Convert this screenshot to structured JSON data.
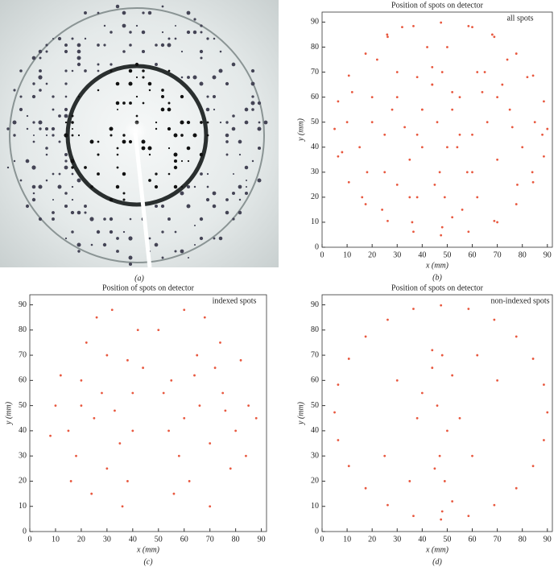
{
  "panel_a": {
    "label": "(a)"
  },
  "chart_data": [
    {
      "type": "scatter",
      "title": "Position of spots on detector",
      "xlabel": "x (mm)",
      "ylabel": "y (mm)",
      "panel_label": "(b)",
      "xlim": [
        0,
        92
      ],
      "ylim": [
        0,
        94
      ],
      "xticks": [
        0,
        10,
        20,
        30,
        40,
        50,
        60,
        70,
        80,
        90
      ],
      "yticks": [
        0,
        10,
        20,
        30,
        40,
        50,
        60,
        70,
        80,
        90
      ],
      "series": [
        {
          "name": "all spots",
          "color": "#e8583f",
          "x": [
            10,
            15,
            20,
            25,
            30,
            35,
            40,
            42,
            38,
            30,
            22,
            18,
            12,
            28,
            33,
            40,
            44,
            26,
            36,
            8,
            16,
            24,
            32,
            20,
            38,
            50,
            55,
            60,
            65,
            70,
            75,
            80,
            85,
            58,
            62,
            68,
            72,
            78,
            82,
            88,
            54,
            66,
            74,
            56,
            70,
            60,
            84,
            52,
            76,
            64,
            90,
            88.6,
            84.3,
            77.6,
            68.8,
            58.5,
            47.5,
            36.5,
            26.2,
            17.4,
            10.7,
            6.4,
            5,
            6.4,
            10.7,
            17.4,
            26.2,
            36.5,
            47.5,
            58.5,
            68.8,
            77.6,
            84.3,
            88.6,
            44,
            48,
            52,
            40,
            46,
            50,
            47,
            49,
            45,
            55,
            38,
            30,
            60,
            25,
            70,
            52,
            44,
            35,
            62,
            48
          ],
          "y": [
            50,
            40,
            60,
            45,
            70,
            35,
            55,
            80,
            20,
            25,
            75,
            30,
            62,
            55,
            48,
            40,
            65,
            85,
            10,
            38,
            20,
            15,
            88,
            50,
            68,
            80,
            60,
            45,
            70,
            35,
            55,
            40,
            50,
            30,
            20,
            85,
            65,
            25,
            68,
            45,
            40,
            50,
            75,
            15,
            10,
            88,
            30,
            55,
            48,
            62,
            47.3,
            58.3,
            68.6,
            77.4,
            84.1,
            88.4,
            89.8,
            88.4,
            84.1,
            77.4,
            68.6,
            58.3,
            47.3,
            36.3,
            26,
            17.2,
            10.5,
            6.2,
            4.8,
            6.2,
            10.5,
            17.2,
            26,
            36.3,
            65,
            70,
            62,
            55,
            50,
            40,
            30,
            20,
            25,
            45,
            45,
            60,
            30,
            30,
            60,
            12,
            72,
            20,
            70,
            8
          ]
        }
      ]
    },
    {
      "type": "scatter",
      "title": "Position of spots on detector",
      "xlabel": "x (mm)",
      "ylabel": "y (mm)",
      "panel_label": "(c)",
      "xlim": [
        0,
        92
      ],
      "ylim": [
        0,
        94
      ],
      "xticks": [
        0,
        10,
        20,
        30,
        40,
        50,
        60,
        70,
        80,
        90
      ],
      "yticks": [
        0,
        10,
        20,
        30,
        40,
        50,
        60,
        70,
        80,
        90
      ],
      "series": [
        {
          "name": "indexed spots",
          "color": "#e8583f",
          "x": [
            10,
            15,
            20,
            25,
            30,
            35,
            40,
            42,
            38,
            30,
            22,
            18,
            12,
            28,
            33,
            40,
            44,
            26,
            36,
            8,
            16,
            24,
            32,
            20,
            38,
            50,
            55,
            60,
            65,
            70,
            75,
            80,
            85,
            58,
            62,
            68,
            72,
            78,
            82,
            88,
            54,
            66,
            74,
            56,
            70,
            60,
            84,
            52,
            76,
            64
          ],
          "y": [
            50,
            40,
            60,
            45,
            70,
            35,
            55,
            80,
            20,
            25,
            75,
            30,
            62,
            55,
            48,
            40,
            65,
            85,
            10,
            38,
            20,
            15,
            88,
            50,
            68,
            80,
            60,
            45,
            70,
            35,
            55,
            40,
            50,
            30,
            20,
            85,
            65,
            25,
            68,
            45,
            40,
            50,
            75,
            15,
            10,
            88,
            30,
            55,
            48,
            62
          ]
        }
      ]
    },
    {
      "type": "scatter",
      "title": "Position of spots on detector",
      "xlabel": "x (mm)",
      "ylabel": "y (mm)",
      "panel_label": "(d)",
      "xlim": [
        0,
        92
      ],
      "ylim": [
        0,
        94
      ],
      "xticks": [
        0,
        10,
        20,
        30,
        40,
        50,
        60,
        70,
        80,
        90
      ],
      "yticks": [
        0,
        10,
        20,
        30,
        40,
        50,
        60,
        70,
        80,
        90
      ],
      "series": [
        {
          "name": "non-indexed spots",
          "color": "#e8583f",
          "x": [
            90,
            88.6,
            84.3,
            77.6,
            68.8,
            58.5,
            47.5,
            36.5,
            26.2,
            17.4,
            10.7,
            6.4,
            5,
            6.4,
            10.7,
            17.4,
            26.2,
            36.5,
            47.5,
            58.5,
            68.8,
            77.6,
            84.3,
            88.6,
            44,
            48,
            52,
            40,
            46,
            50,
            47,
            49,
            45,
            55,
            38,
            30,
            60,
            25,
            70,
            52,
            44,
            35,
            62,
            48
          ],
          "y": [
            47.3,
            58.3,
            68.6,
            77.4,
            84.1,
            88.4,
            89.8,
            88.4,
            84.1,
            77.4,
            68.6,
            58.3,
            47.3,
            36.3,
            26,
            17.2,
            10.5,
            6.2,
            4.8,
            6.2,
            10.5,
            17.2,
            26,
            36.3,
            65,
            70,
            62,
            55,
            50,
            40,
            30,
            20,
            25,
            45,
            45,
            60,
            30,
            30,
            60,
            12,
            72,
            20,
            70,
            8
          ]
        }
      ]
    }
  ]
}
